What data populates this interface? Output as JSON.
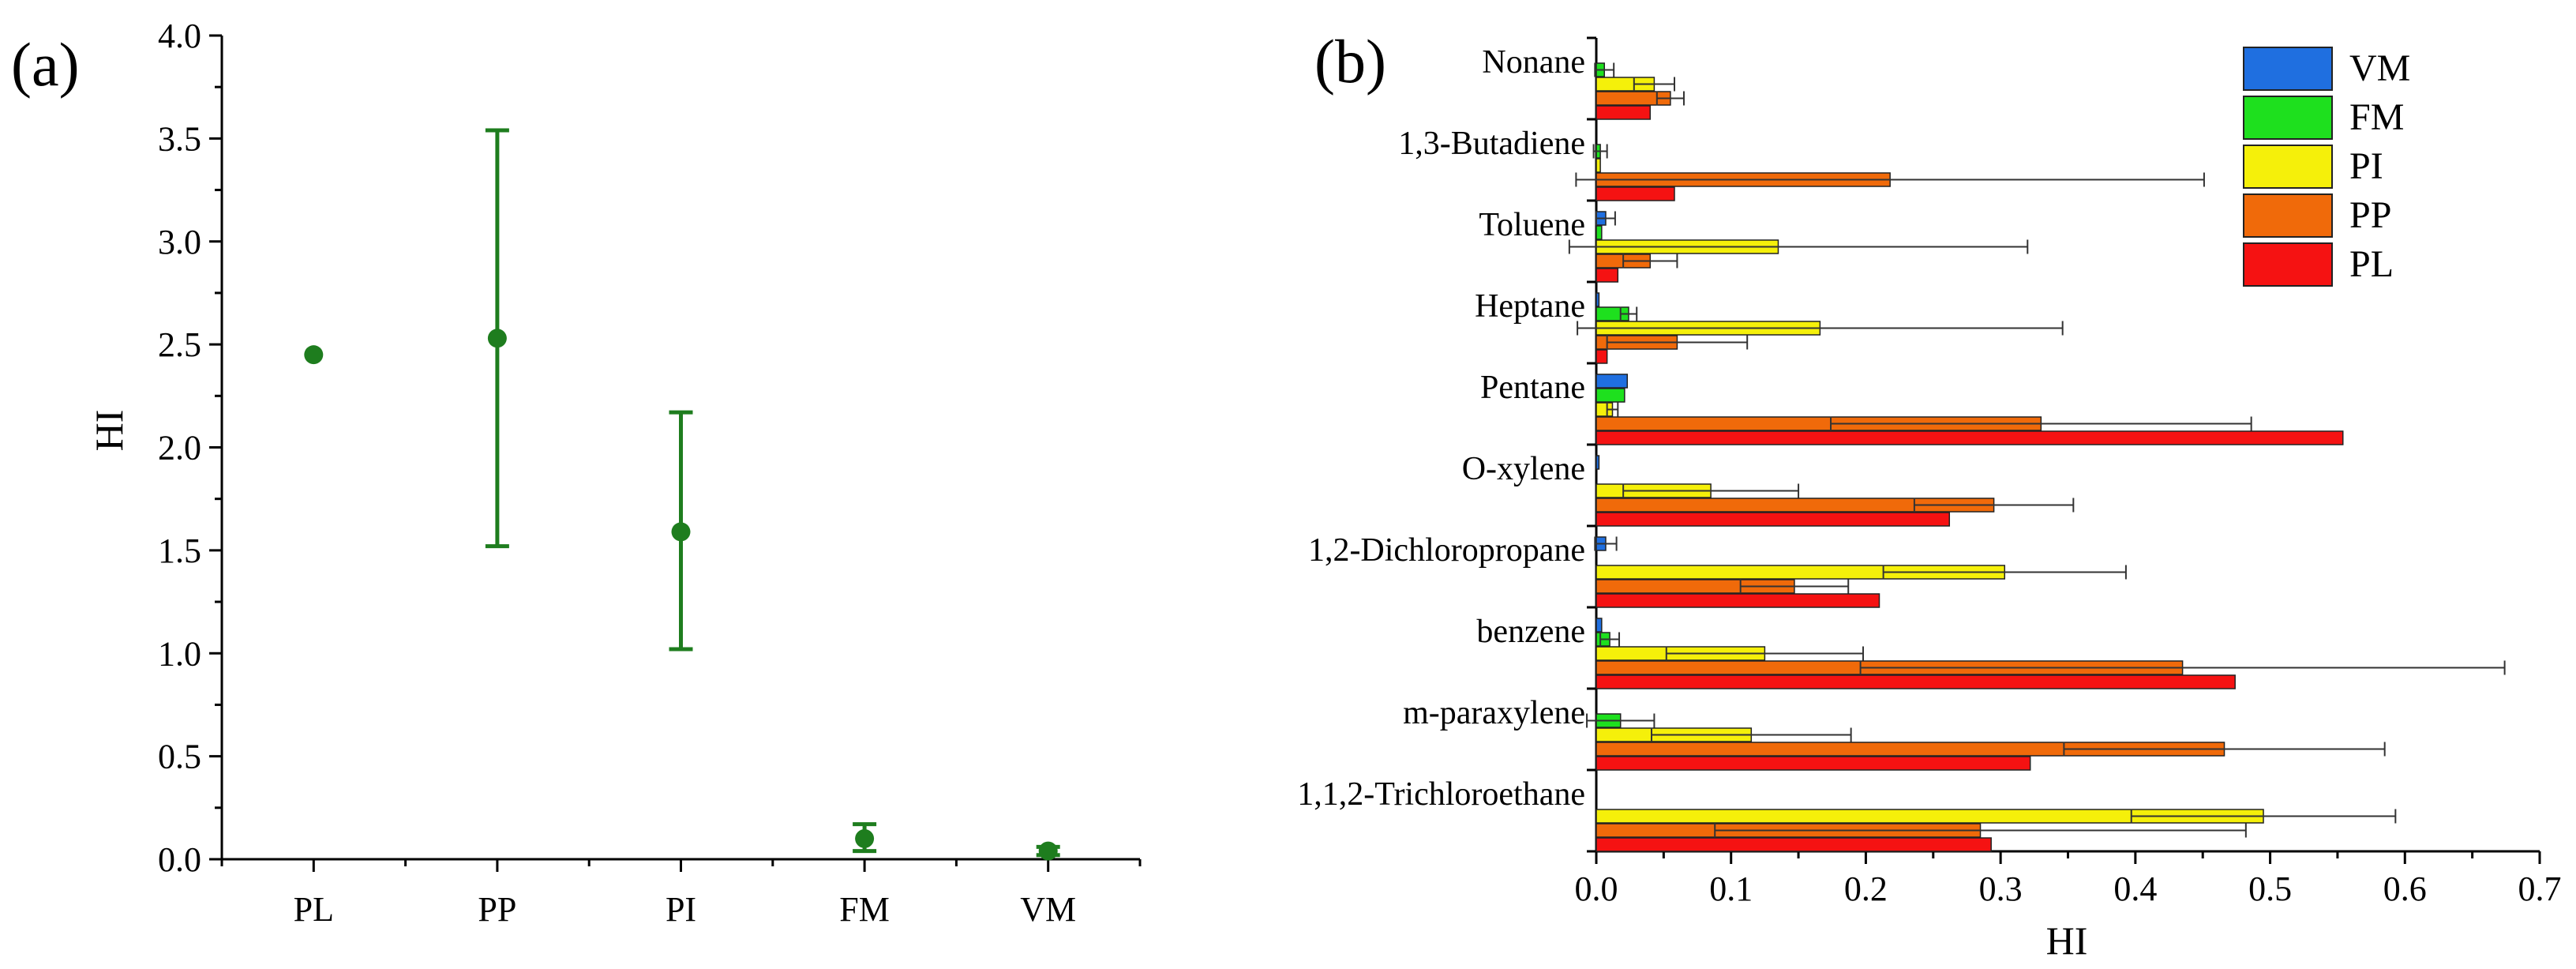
{
  "chart_data": [
    {
      "panel": "(a)",
      "type": "scatter",
      "title": "",
      "xlabel": "",
      "ylabel": "HI",
      "categories": [
        "PL",
        "PP",
        "PI",
        "FM",
        "VM"
      ],
      "values": [
        2.45,
        2.53,
        1.59,
        0.1,
        0.04
      ],
      "error_low": [
        2.45,
        1.52,
        1.02,
        0.04,
        0.02
      ],
      "error_high": [
        2.45,
        3.54,
        2.17,
        0.17,
        0.06
      ],
      "ylim": [
        0,
        4.0
      ],
      "yticks": [
        "0.0",
        "0.5",
        "1.0",
        "1.5",
        "2.0",
        "2.5",
        "3.0",
        "3.5",
        "4.0"
      ],
      "color": "#1e7d1e",
      "grid": false
    },
    {
      "panel": "(b)",
      "type": "bar",
      "orientation": "horizontal",
      "title": "",
      "xlabel": "HI",
      "ylabel": "",
      "xlim": [
        0,
        0.7
      ],
      "xticks": [
        "0.0",
        "0.1",
        "0.2",
        "0.3",
        "0.4",
        "0.5",
        "0.6",
        "0.7"
      ],
      "categories": [
        "Nonane",
        "1,3-Butadiene",
        "Toluene",
        "Heptane",
        "Pentane",
        "O-xylene",
        "1,2-Dichloropropane",
        "benzene",
        "m-paraxylene",
        "1,1,2-Trichloroethane"
      ],
      "series": [
        {
          "name": "VM",
          "color": "#1f6fe0",
          "values": [
            0.0,
            0.0,
            0.007,
            0.002,
            0.023,
            0.002,
            0.007,
            0.004,
            0.0,
            0.0
          ],
          "errors": [
            0.0,
            0.0,
            0.007,
            0.0,
            0.0,
            0.0,
            0.008,
            0.0,
            0.0,
            0.0
          ]
        },
        {
          "name": "FM",
          "color": "#1ee01e",
          "values": [
            0.006,
            0.003,
            0.004,
            0.024,
            0.021,
            0.0,
            0.0,
            0.01,
            0.018,
            0.0
          ],
          "errors": [
            0.007,
            0.005,
            0.0,
            0.006,
            0.0,
            0.0,
            0.0,
            0.007,
            0.025,
            0.0
          ]
        },
        {
          "name": "PI",
          "color": "#f5f00a",
          "values": [
            0.043,
            0.003,
            0.135,
            0.166,
            0.012,
            0.085,
            0.303,
            0.125,
            0.115,
            0.495
          ],
          "errors": [
            0.015,
            0.0,
            0.185,
            0.18,
            0.004,
            0.065,
            0.09,
            0.073,
            0.074,
            0.098
          ]
        },
        {
          "name": "PP",
          "color": "#f06a0a",
          "values": [
            0.055,
            0.218,
            0.04,
            0.06,
            0.33,
            0.295,
            0.147,
            0.435,
            0.466,
            0.285
          ],
          "errors": [
            0.01,
            0.233,
            0.02,
            0.052,
            0.156,
            0.059,
            0.04,
            0.239,
            0.119,
            0.197
          ]
        },
        {
          "name": "PL",
          "color": "#f51212",
          "values": [
            0.04,
            0.058,
            0.016,
            0.008,
            0.554,
            0.262,
            0.21,
            0.474,
            0.322,
            0.293
          ],
          "errors": [
            0.0,
            0.0,
            0.0,
            0.0,
            0.0,
            0.0,
            0.0,
            0.0,
            0.0,
            0.0
          ]
        }
      ],
      "legend": [
        "VM",
        "FM",
        "PI",
        "PP",
        "PL"
      ],
      "legend_position": "top-right",
      "grid": false
    }
  ]
}
